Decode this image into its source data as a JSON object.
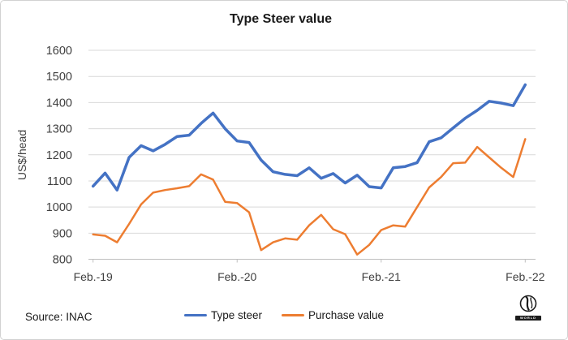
{
  "title": "Type Steer value",
  "y_axis": {
    "label": "US$/head",
    "ticks": [
      1600,
      1500,
      1400,
      1300,
      1200,
      1100,
      1000,
      900,
      800
    ]
  },
  "x_axis": {
    "ticks": [
      "Feb.-19",
      "Feb.-20",
      "Feb.-21",
      "Feb.-22"
    ]
  },
  "legend": {
    "items": [
      {
        "label": "Type steer",
        "color": "#4472C4"
      },
      {
        "label": "Purchase value",
        "color": "#ED7D31"
      }
    ]
  },
  "source": "Source: INAC",
  "logo": {
    "caption": "WORLD"
  },
  "colors": {
    "type_steer": "#4472C4",
    "purchase_value": "#ED7D31",
    "gridline": "#d9d9d9",
    "axis": "#bfbfbf"
  },
  "chart_data": {
    "type": "line",
    "title": "Type Steer value",
    "xlabel": "",
    "ylabel": "US$/head",
    "ylim": [
      800,
      1600
    ],
    "grid": "horizontal",
    "legend_position": "bottom",
    "x_tick_labels_shown": [
      "Feb.-19",
      "Feb.-20",
      "Feb.-21",
      "Feb.-22"
    ],
    "categories": [
      "Feb-19",
      "Mar-19",
      "Apr-19",
      "May-19",
      "Jun-19",
      "Jul-19",
      "Aug-19",
      "Sep-19",
      "Oct-19",
      "Nov-19",
      "Dec-19",
      "Jan-20",
      "Feb-20",
      "Mar-20",
      "Apr-20",
      "May-20",
      "Jun-20",
      "Jul-20",
      "Aug-20",
      "Sep-20",
      "Oct-20",
      "Nov-20",
      "Dec-20",
      "Jan-21",
      "Feb-21",
      "Mar-21",
      "Apr-21",
      "May-21",
      "Jun-21",
      "Jul-21",
      "Aug-21",
      "Sep-21",
      "Oct-21",
      "Nov-21",
      "Dec-21",
      "Jan-22",
      "Feb-22"
    ],
    "series": [
      {
        "name": "Type steer",
        "color": "#4472C4",
        "values": [
          1080,
          1130,
          1065,
          1190,
          1235,
          1215,
          1240,
          1270,
          1275,
          1320,
          1360,
          1300,
          1253,
          1247,
          1180,
          1135,
          1125,
          1120,
          1150,
          1110,
          1128,
          1092,
          1122,
          1078,
          1073,
          1150,
          1155,
          1170,
          1250,
          1265,
          1303,
          1340,
          1370,
          1405,
          1398,
          1388,
          1468
        ]
      },
      {
        "name": "Purchase value",
        "color": "#ED7D31",
        "values": [
          895,
          890,
          865,
          935,
          1010,
          1055,
          1065,
          1072,
          1080,
          1125,
          1105,
          1020,
          1015,
          980,
          835,
          865,
          880,
          875,
          930,
          970,
          915,
          896,
          818,
          855,
          912,
          930,
          925,
          1000,
          1075,
          1115,
          1168,
          1170,
          1230,
          1190,
          1150,
          1115,
          1260
        ]
      }
    ]
  }
}
